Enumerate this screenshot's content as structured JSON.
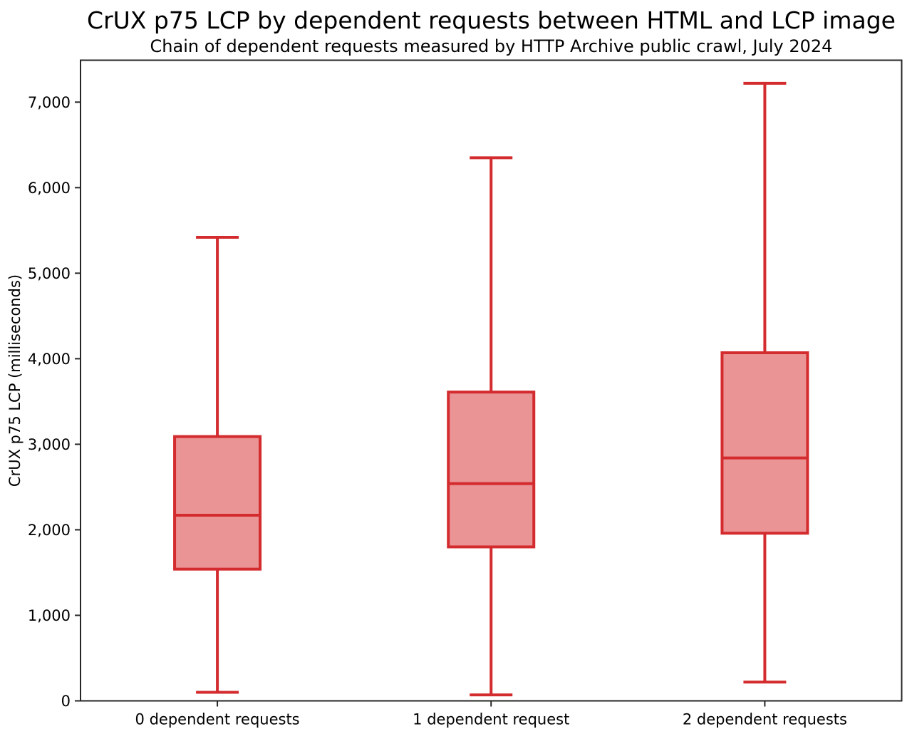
{
  "chart_data": {
    "type": "boxplot",
    "title": "CrUX p75 LCP by dependent requests between HTML and LCP image",
    "subtitle": "Chain of dependent requests measured by HTTP Archive public crawl, July 2024",
    "ylabel": "CrUX p75 LCP (milliseconds)",
    "xlabel": "",
    "categories": [
      "0 dependent requests",
      "1 dependent request",
      "2 dependent requests"
    ],
    "series": [
      {
        "category": "0 dependent requests",
        "whisker_low": 100,
        "q1": 1540,
        "median": 2170,
        "q3": 3090,
        "whisker_high": 5420
      },
      {
        "category": "1 dependent request",
        "whisker_low": 70,
        "q1": 1800,
        "median": 2540,
        "q3": 3610,
        "whisker_high": 6350
      },
      {
        "category": "2 dependent requests",
        "whisker_low": 220,
        "q1": 1960,
        "median": 2840,
        "q3": 4070,
        "whisker_high": 7220
      }
    ],
    "yticks": [
      0,
      1000,
      2000,
      3000,
      4000,
      5000,
      6000,
      7000
    ],
    "ytick_labels": [
      "0",
      "1,000",
      "2,000",
      "3,000",
      "4,000",
      "5,000",
      "6,000",
      "7,000"
    ],
    "ylim": [
      0,
      7490
    ],
    "grid": false,
    "legend": null,
    "outliers": [],
    "colors": {
      "box_stroke": "#d32b2e",
      "box_fill": "#eb9495",
      "axis": "#262626",
      "text": "#000000",
      "background": "#ffffff"
    }
  }
}
